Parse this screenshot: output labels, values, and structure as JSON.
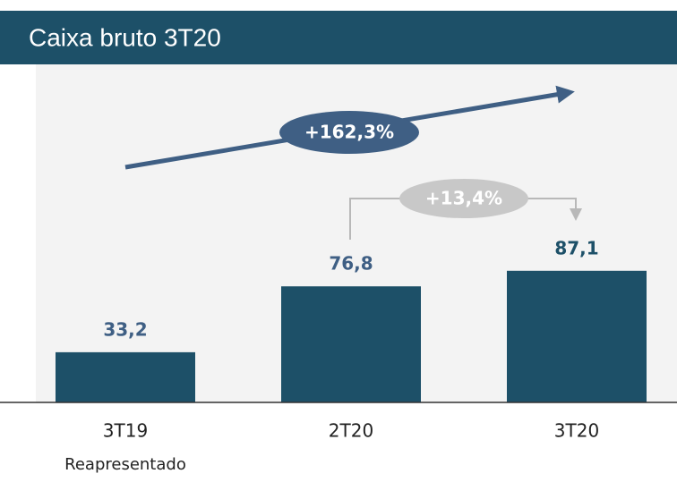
{
  "chart_data": {
    "type": "bar",
    "title": "Caixa bruto 3T20",
    "categories": [
      "3T19",
      "2T20",
      "3T20"
    ],
    "category_sublabels": [
      "Reapresentado"
    ],
    "values": [
      33.2,
      76.8,
      87.1
    ],
    "value_labels": [
      "33,2",
      "76,8",
      "87,1"
    ],
    "color": "#1d5068",
    "value_label_colors": [
      "#3f5f84",
      "#3f5f84",
      "#1d5068"
    ],
    "annotations": [
      "+162,3%",
      "+13,4%"
    ]
  }
}
